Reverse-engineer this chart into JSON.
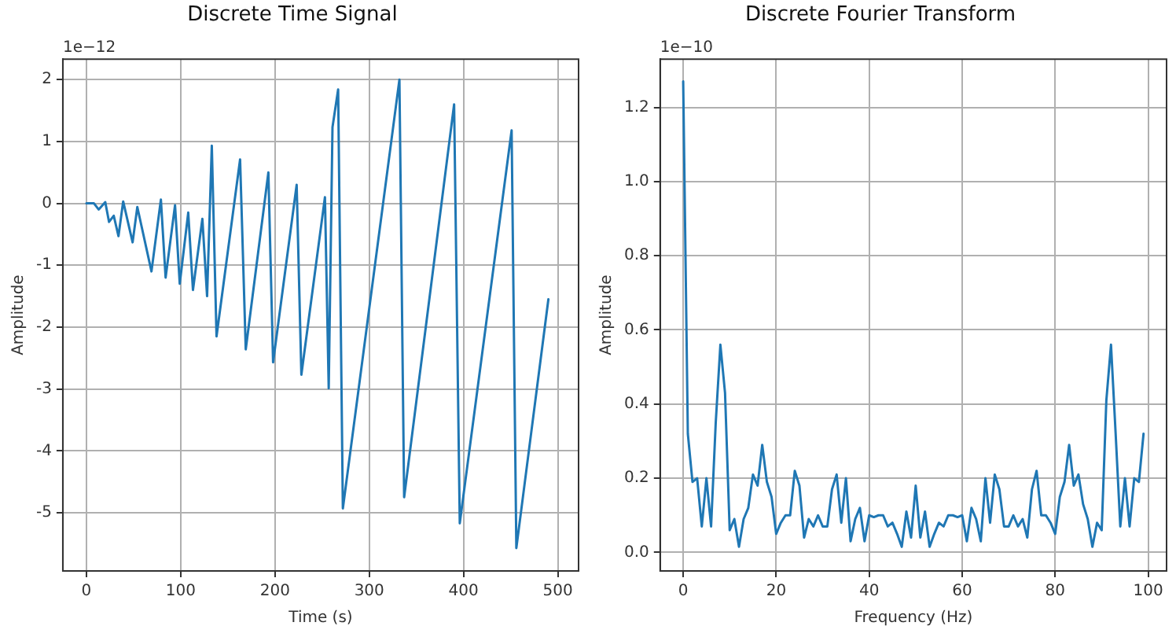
{
  "chart_data": [
    {
      "type": "line",
      "title": "Discrete Time Signal",
      "xlabel": "Time (s)",
      "ylabel": "Amplitude",
      "annotations": [
        "1e−12"
      ],
      "x": [
        0,
        8,
        13,
        20,
        24,
        29,
        34,
        39,
        49,
        54,
        69,
        79,
        84,
        94,
        99,
        108,
        113,
        123,
        128,
        133,
        138,
        163,
        169,
        193,
        198,
        223,
        228,
        253,
        257,
        261,
        267,
        272,
        332,
        337,
        390,
        396,
        451,
        456,
        490
      ],
      "series": [
        {
          "color": "#1f77b4",
          "values": [
            0,
            0,
            -0.1,
            0.02,
            -0.3,
            -0.2,
            -0.53,
            0.03,
            -0.63,
            -0.06,
            -1.1,
            0.06,
            -1.2,
            -0.03,
            -1.3,
            -0.15,
            -1.4,
            -0.25,
            -1.5,
            0.93,
            -2.15,
            0.71,
            -2.36,
            0.5,
            -2.57,
            0.3,
            -2.77,
            0.1,
            -2.99,
            1.23,
            1.84,
            -4.93,
            2.0,
            -4.75,
            1.6,
            -5.17,
            1.18,
            -5.57,
            -1.55
          ]
        }
      ],
      "xlim": [
        -25,
        522
      ],
      "xticks": [
        0,
        100,
        200,
        300,
        400,
        500
      ],
      "ylim": [
        -5.94,
        2.33
      ],
      "yticks": [
        -5,
        -4,
        -3,
        -2,
        -1,
        0,
        1,
        2
      ],
      "grid": true,
      "legend": false,
      "marker": "none",
      "line_style": "solid"
    },
    {
      "type": "line",
      "title": "Discrete Fourier Transform",
      "xlabel": "Frequency (Hz)",
      "ylabel": "Amplitude",
      "annotations": [
        "1e−10"
      ],
      "x": [
        0,
        1,
        2,
        3,
        4,
        5,
        6,
        7,
        8,
        9,
        10,
        11,
        12,
        13,
        14,
        15,
        16,
        17,
        18,
        19,
        20,
        21,
        22,
        23,
        24,
        25,
        26,
        27,
        28,
        29,
        30,
        31,
        32,
        33,
        34,
        35,
        36,
        37,
        38,
        39,
        40,
        41,
        42,
        43,
        44,
        45,
        46,
        47,
        48,
        49,
        50,
        51,
        52,
        53,
        54,
        55,
        56,
        57,
        58,
        59,
        60,
        61,
        62,
        63,
        64,
        65,
        66,
        67,
        68,
        69,
        70,
        71,
        72,
        73,
        74,
        75,
        76,
        77,
        78,
        79,
        80,
        81,
        82,
        83,
        84,
        85,
        86,
        87,
        88,
        89,
        90,
        91,
        92,
        93,
        94,
        95,
        96,
        97,
        98,
        99
      ],
      "series": [
        {
          "color": "#1f77b4",
          "values": [
            1.27,
            0.32,
            0.19,
            0.2,
            0.07,
            0.2,
            0.07,
            0.35,
            0.56,
            0.43,
            0.06,
            0.09,
            0.015,
            0.09,
            0.12,
            0.21,
            0.18,
            0.29,
            0.19,
            0.15,
            0.05,
            0.08,
            0.1,
            0.1,
            0.22,
            0.18,
            0.04,
            0.09,
            0.07,
            0.1,
            0.07,
            0.07,
            0.17,
            0.21,
            0.08,
            0.2,
            0.03,
            0.09,
            0.12,
            0.03,
            0.1,
            0.095,
            0.1,
            0.1,
            0.07,
            0.08,
            0.05,
            0.015,
            0.11,
            0.04,
            0.18,
            0.04,
            0.11,
            0.015,
            0.05,
            0.08,
            0.07,
            0.1,
            0.1,
            0.095,
            0.1,
            0.03,
            0.12,
            0.09,
            0.03,
            0.2,
            0.08,
            0.21,
            0.17,
            0.07,
            0.07,
            0.1,
            0.07,
            0.09,
            0.04,
            0.17,
            0.22,
            0.1,
            0.1,
            0.08,
            0.05,
            0.15,
            0.19,
            0.29,
            0.18,
            0.21,
            0.13,
            0.09,
            0.015,
            0.08,
            0.06,
            0.41,
            0.56,
            0.32,
            0.07,
            0.2,
            0.07,
            0.2,
            0.19,
            0.32
          ]
        }
      ],
      "xlim": [
        -4.95,
        103.95
      ],
      "xticks": [
        0,
        20,
        40,
        60,
        80,
        100
      ],
      "ylim": [
        -0.05,
        1.33
      ],
      "yticks": [
        {
          "value": 0,
          "label": "0.0"
        },
        {
          "value": 0.2,
          "label": "0.2"
        },
        {
          "value": 0.4,
          "label": "0.4"
        },
        {
          "value": 0.6,
          "label": "0.6"
        },
        {
          "value": 0.8,
          "label": "0.8"
        },
        {
          "value": 1.0,
          "label": "1.0"
        },
        {
          "value": 1.2,
          "label": "1.2"
        }
      ],
      "grid": true,
      "legend": false,
      "marker": "none",
      "line_style": "solid"
    }
  ]
}
